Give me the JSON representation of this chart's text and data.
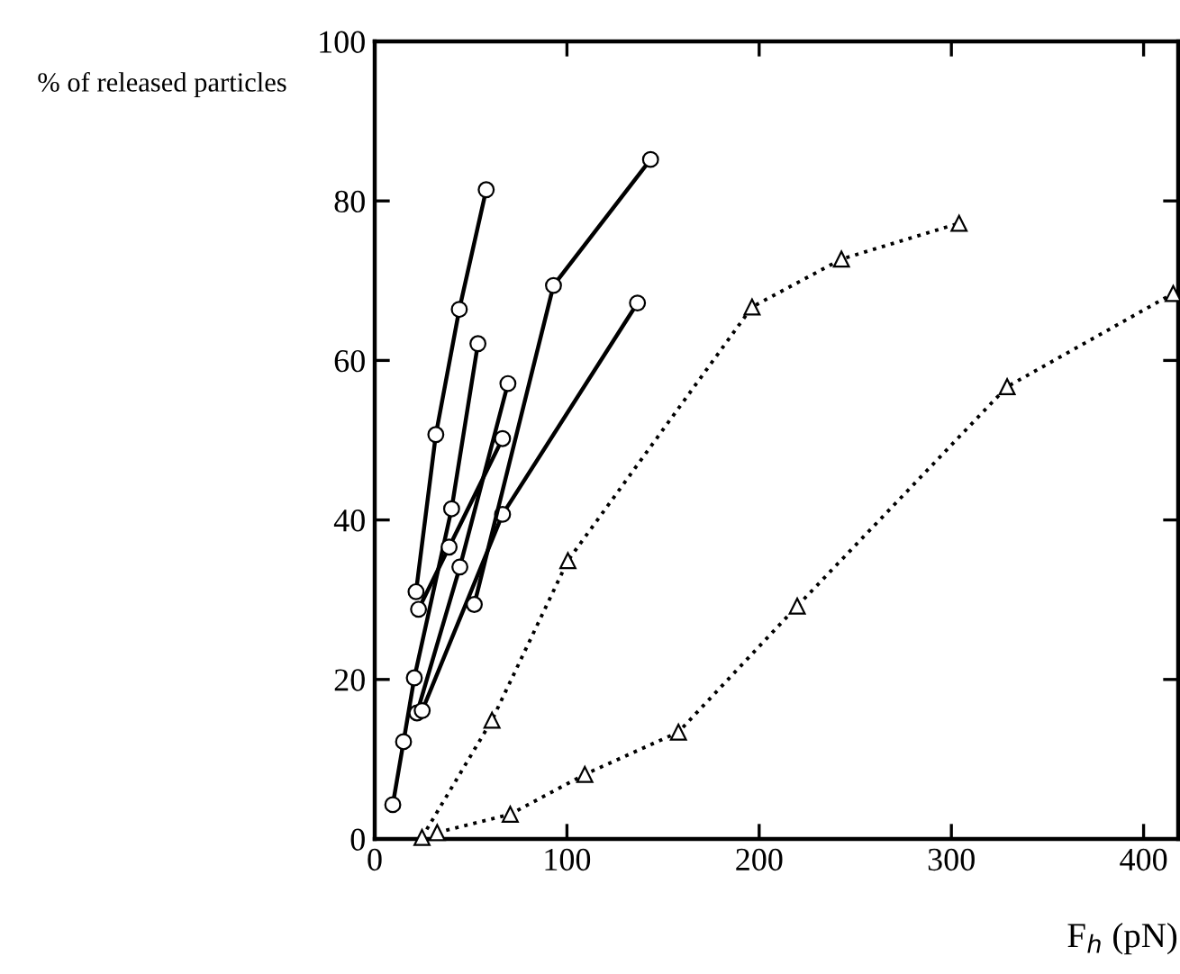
{
  "chart_data": {
    "type": "line",
    "xlabel": "F$_{h}$ (pN)",
    "ylabel": "% of released particles",
    "xlim": [
      0,
      418
    ],
    "ylim": [
      0,
      100
    ],
    "xticks": [
      0,
      100,
      200,
      300,
      400
    ],
    "yticks": [
      0,
      20,
      40,
      60,
      80,
      100
    ],
    "grid": false,
    "legend": false,
    "series": [
      {
        "color": "#000000",
        "marker": "circle",
        "line_style": "solid",
        "x": [
          21.5,
          31.8,
          44,
          58
        ],
        "values": [
          31,
          50.7,
          66.4,
          81.4
        ]
      },
      {
        "color": "#000000",
        "marker": "circle",
        "line_style": "solid",
        "x": [
          9.4,
          15,
          20.6,
          40,
          53.7
        ],
        "values": [
          4.3,
          12.2,
          20.2,
          41.4,
          62.1
        ]
      },
      {
        "color": "#000000",
        "marker": "circle",
        "line_style": "solid",
        "x": [
          22.8,
          38.7,
          66.5
        ],
        "values": [
          28.8,
          36.6,
          50.2
        ]
      },
      {
        "color": "#000000",
        "marker": "circle",
        "line_style": "solid",
        "x": [
          22,
          44.3,
          69.3
        ],
        "values": [
          15.8,
          34.1,
          57.1
        ]
      },
      {
        "color": "#000000",
        "marker": "circle",
        "line_style": "solid",
        "x": [
          24.7,
          66.5,
          136.7
        ],
        "values": [
          16.1,
          40.7,
          67.2
        ]
      },
      {
        "color": "#000000",
        "marker": "circle",
        "line_style": "solid",
        "x": [
          51.8,
          93,
          143.5
        ],
        "values": [
          29.4,
          69.4,
          85.2
        ]
      },
      {
        "color": "#000000",
        "marker": "triangle",
        "line_style": "dotted",
        "x": [
          24.6,
          61,
          100.5,
          196.3,
          242.8,
          304
        ],
        "values": [
          0.2,
          14.9,
          34.9,
          66.7,
          72.7,
          77.2
        ]
      },
      {
        "color": "#000000",
        "marker": "triangle",
        "line_style": "dotted",
        "x": [
          32.5,
          70.5,
          109.3,
          158,
          219.8,
          329,
          415.4
        ],
        "values": [
          0.8,
          3.1,
          8.1,
          13.4,
          29.2,
          56.7,
          68.4
        ]
      }
    ]
  }
}
